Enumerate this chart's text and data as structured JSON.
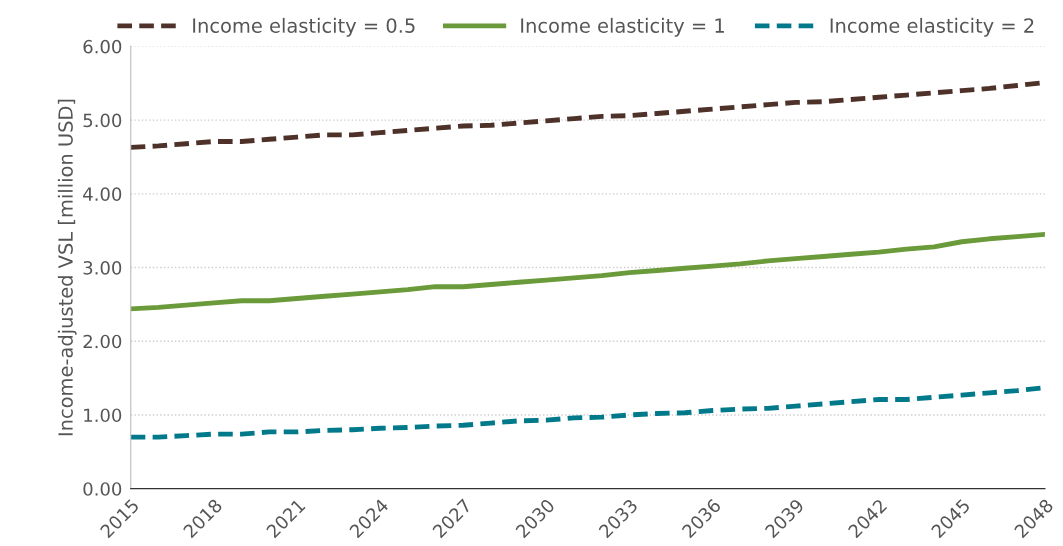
{
  "chart_data": {
    "type": "line",
    "ylabel": "Income-adjusted VSL [million USD]",
    "x": [
      2015,
      2016,
      2017,
      2018,
      2019,
      2020,
      2021,
      2022,
      2023,
      2024,
      2025,
      2026,
      2027,
      2028,
      2029,
      2030,
      2031,
      2032,
      2033,
      2034,
      2035,
      2036,
      2037,
      2038,
      2039,
      2040,
      2041,
      2042,
      2043,
      2044,
      2045,
      2046,
      2047,
      2048
    ],
    "series": [
      {
        "name": "Income elasticity = 0.5",
        "color": "#4e3229",
        "line_style": "dashed",
        "values": [
          4.63,
          4.65,
          4.68,
          4.71,
          4.71,
          4.74,
          4.77,
          4.8,
          4.8,
          4.83,
          4.86,
          4.89,
          4.92,
          4.93,
          4.96,
          4.99,
          5.02,
          5.05,
          5.06,
          5.09,
          5.12,
          5.15,
          5.18,
          5.21,
          5.24,
          5.25,
          5.28,
          5.31,
          5.34,
          5.37,
          5.4,
          5.43,
          5.47,
          5.51
        ]
      },
      {
        "name": "Income elasticity = 1",
        "color": "#6a9a3a",
        "line_style": "solid",
        "values": [
          2.44,
          2.46,
          2.49,
          2.52,
          2.55,
          2.55,
          2.58,
          2.61,
          2.64,
          2.67,
          2.7,
          2.74,
          2.74,
          2.77,
          2.8,
          2.83,
          2.86,
          2.89,
          2.93,
          2.96,
          2.99,
          3.02,
          3.05,
          3.09,
          3.12,
          3.15,
          3.18,
          3.21,
          3.25,
          3.28,
          3.35,
          3.39,
          3.42,
          3.45
        ]
      },
      {
        "name": "Income elasticity = 2",
        "color": "#007a8a",
        "line_style": "dashed",
        "values": [
          0.7,
          0.7,
          0.72,
          0.74,
          0.74,
          0.77,
          0.77,
          0.79,
          0.8,
          0.82,
          0.83,
          0.85,
          0.86,
          0.89,
          0.92,
          0.93,
          0.96,
          0.97,
          1.0,
          1.02,
          1.03,
          1.06,
          1.08,
          1.09,
          1.12,
          1.15,
          1.18,
          1.21,
          1.21,
          1.24,
          1.27,
          1.3,
          1.33,
          1.37
        ]
      }
    ],
    "xlim": [
      2015,
      2048
    ],
    "xticks": [
      2015,
      2018,
      2021,
      2024,
      2027,
      2030,
      2033,
      2036,
      2039,
      2042,
      2045,
      2048
    ],
    "ylim": [
      0,
      6
    ],
    "yticks": [
      {
        "value": 0,
        "label": "0.00"
      },
      {
        "value": 1,
        "label": "1.00"
      },
      {
        "value": 2,
        "label": "2.00"
      },
      {
        "value": 3,
        "label": "3.00"
      },
      {
        "value": 4,
        "label": "4.00"
      },
      {
        "value": 5,
        "label": "5.00"
      },
      {
        "value": 6,
        "label": "6.00"
      }
    ],
    "grid": "y",
    "legend": "top",
    "marker": "none"
  }
}
